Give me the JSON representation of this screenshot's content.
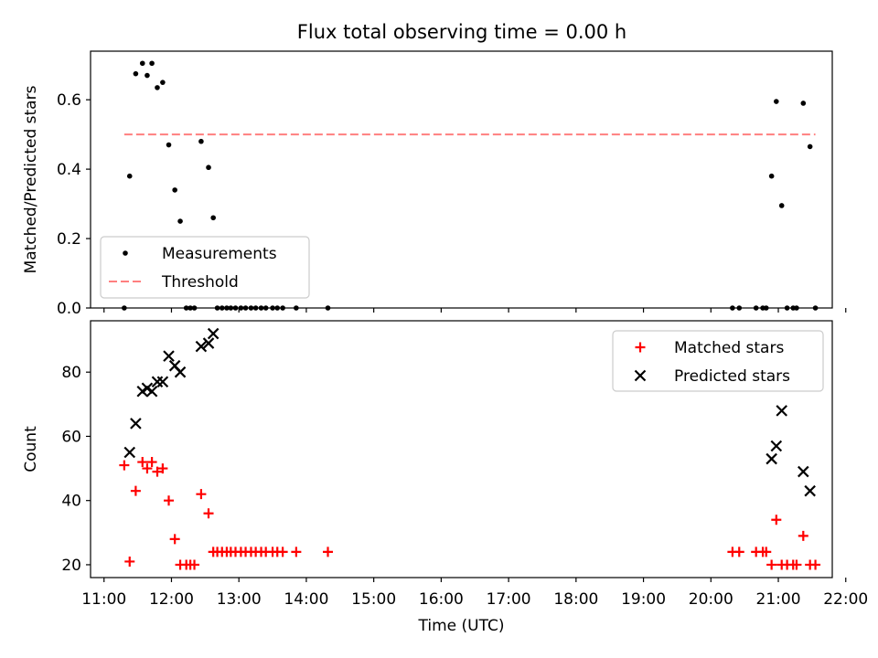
{
  "title": "Flux total observing time = 0.00 h",
  "chart_data": [
    {
      "type": "scatter",
      "ylabel": "Matched/Predicted stars",
      "ylim": [
        0,
        0.74
      ],
      "yticks": [
        "0.0",
        "0.2",
        "0.4",
        "0.6"
      ],
      "ytick_values": [
        0,
        0.2,
        0.4,
        0.6
      ],
      "xlim": [
        10.8,
        21.8
      ],
      "xtick_values": [
        11,
        12,
        13,
        14,
        15,
        16,
        17,
        18,
        19,
        20,
        21,
        22
      ],
      "threshold": {
        "value": 0.5,
        "x_range": [
          11.3,
          21.55
        ],
        "color": "#ff7f7f"
      },
      "legend": {
        "position": "lower-left",
        "entries": [
          "Measurements",
          "Threshold"
        ]
      },
      "series": [
        {
          "name": "Measurements",
          "color": "#000000",
          "points": [
            [
              11.3,
              0
            ],
            [
              11.38,
              0.38
            ],
            [
              11.47,
              0.675
            ],
            [
              11.57,
              0.705
            ],
            [
              11.64,
              0.67
            ],
            [
              11.71,
              0.705
            ],
            [
              11.79,
              0.635
            ],
            [
              11.87,
              0.65
            ],
            [
              11.96,
              0.47
            ],
            [
              12.05,
              0.34
            ],
            [
              12.13,
              0.25
            ],
            [
              12.22,
              0
            ],
            [
              12.28,
              0
            ],
            [
              12.34,
              0
            ],
            [
              12.44,
              0.48
            ],
            [
              12.55,
              0.405
            ],
            [
              12.62,
              0.26
            ],
            [
              12.68,
              0
            ],
            [
              12.75,
              0
            ],
            [
              12.82,
              0
            ],
            [
              12.88,
              0
            ],
            [
              12.95,
              0
            ],
            [
              13.03,
              0
            ],
            [
              13.1,
              0
            ],
            [
              13.18,
              0
            ],
            [
              13.25,
              0
            ],
            [
              13.33,
              0
            ],
            [
              13.4,
              0
            ],
            [
              13.5,
              0
            ],
            [
              13.57,
              0
            ],
            [
              13.65,
              0
            ],
            [
              13.85,
              0
            ],
            [
              14.32,
              0
            ],
            [
              20.32,
              0
            ],
            [
              20.42,
              0
            ],
            [
              20.67,
              0
            ],
            [
              20.77,
              0
            ],
            [
              20.82,
              0
            ],
            [
              20.9,
              0.38
            ],
            [
              20.97,
              0.595
            ],
            [
              21.05,
              0.295
            ],
            [
              21.13,
              0
            ],
            [
              21.22,
              0
            ],
            [
              21.27,
              0
            ],
            [
              21.37,
              0.59
            ],
            [
              21.47,
              0.465
            ],
            [
              21.55,
              0
            ]
          ]
        }
      ]
    },
    {
      "type": "scatter",
      "xlabel": "Time (UTC)",
      "ylabel": "Count",
      "ylim": [
        16,
        96
      ],
      "yticks": [
        "20",
        "40",
        "60",
        "80"
      ],
      "ytick_values": [
        20,
        40,
        60,
        80
      ],
      "xlim": [
        10.8,
        21.8
      ],
      "xtick_values": [
        11,
        12,
        13,
        14,
        15,
        16,
        17,
        18,
        19,
        20,
        21,
        22
      ],
      "xticks": [
        "11:00",
        "12:00",
        "13:00",
        "14:00",
        "15:00",
        "16:00",
        "17:00",
        "18:00",
        "19:00",
        "20:00",
        "21:00",
        "22:00"
      ],
      "legend": {
        "position": "top-right",
        "entries": [
          "Matched stars",
          "Predicted stars"
        ]
      },
      "series": [
        {
          "name": "Matched stars",
          "marker": "plus",
          "color": "#ff0000",
          "points": [
            [
              11.3,
              51
            ],
            [
              11.38,
              21
            ],
            [
              11.47,
              43
            ],
            [
              11.57,
              52
            ],
            [
              11.64,
              50
            ],
            [
              11.71,
              52
            ],
            [
              11.79,
              49
            ],
            [
              11.87,
              50
            ],
            [
              11.96,
              40
            ],
            [
              12.05,
              28
            ],
            [
              12.13,
              20
            ],
            [
              12.22,
              20
            ],
            [
              12.28,
              20
            ],
            [
              12.34,
              20
            ],
            [
              12.44,
              42
            ],
            [
              12.55,
              36
            ],
            [
              12.62,
              24
            ],
            [
              12.68,
              24
            ],
            [
              12.75,
              24
            ],
            [
              12.82,
              24
            ],
            [
              12.88,
              24
            ],
            [
              12.95,
              24
            ],
            [
              13.03,
              24
            ],
            [
              13.1,
              24
            ],
            [
              13.18,
              24
            ],
            [
              13.25,
              24
            ],
            [
              13.33,
              24
            ],
            [
              13.4,
              24
            ],
            [
              13.5,
              24
            ],
            [
              13.57,
              24
            ],
            [
              13.65,
              24
            ],
            [
              13.85,
              24
            ],
            [
              14.32,
              24
            ],
            [
              20.32,
              24
            ],
            [
              20.42,
              24
            ],
            [
              20.67,
              24
            ],
            [
              20.77,
              24
            ],
            [
              20.82,
              24
            ],
            [
              20.9,
              20
            ],
            [
              20.97,
              34
            ],
            [
              21.05,
              20
            ],
            [
              21.13,
              20
            ],
            [
              21.22,
              20
            ],
            [
              21.27,
              20
            ],
            [
              21.37,
              29
            ],
            [
              21.47,
              20
            ],
            [
              21.55,
              20
            ]
          ]
        },
        {
          "name": "Predicted stars",
          "marker": "x",
          "color": "#000000",
          "points": [
            [
              11.38,
              55
            ],
            [
              11.47,
              64
            ],
            [
              11.57,
              74
            ],
            [
              11.64,
              75
            ],
            [
              11.71,
              74
            ],
            [
              11.79,
              77
            ],
            [
              11.87,
              77
            ],
            [
              11.96,
              85
            ],
            [
              12.05,
              82
            ],
            [
              12.13,
              80
            ],
            [
              12.44,
              88
            ],
            [
              12.55,
              89
            ],
            [
              12.62,
              92
            ],
            [
              20.9,
              53
            ],
            [
              20.97,
              57
            ],
            [
              21.05,
              68
            ],
            [
              21.37,
              49
            ],
            [
              21.47,
              43
            ]
          ]
        }
      ]
    }
  ]
}
